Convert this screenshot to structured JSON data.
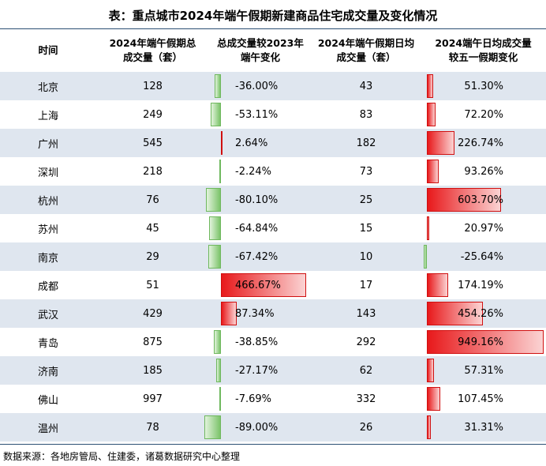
{
  "title": "表：重点城市2024年端午假期新建商品住宅成交量及变化情况",
  "source": "数据来源：各地房管局、住建委，诸葛数据研究中心整理",
  "chart_data": {
    "type": "table",
    "columns": [
      "时间",
      "2024年端午假期总\n成交量（套）",
      "总成交量较2023年\n端午变化",
      "2024年端午假期日均\n成交量（套）",
      "2024端午日均成交量\n较五一假期变化"
    ],
    "rows": [
      {
        "city": "北京",
        "total": "128",
        "change_vs_2023": -36.0,
        "daily": "43",
        "change_vs_mayday": 51.3
      },
      {
        "city": "上海",
        "total": "249",
        "change_vs_2023": -53.11,
        "daily": "83",
        "change_vs_mayday": 72.2
      },
      {
        "city": "广州",
        "total": "545",
        "change_vs_2023": 2.64,
        "daily": "182",
        "change_vs_mayday": 226.74
      },
      {
        "city": "深圳",
        "total": "218",
        "change_vs_2023": -2.24,
        "daily": "73",
        "change_vs_mayday": 93.26
      },
      {
        "city": "杭州",
        "total": "76",
        "change_vs_2023": -80.1,
        "daily": "25",
        "change_vs_mayday": 603.7
      },
      {
        "city": "苏州",
        "total": "45",
        "change_vs_2023": -64.84,
        "daily": "15",
        "change_vs_mayday": 20.97
      },
      {
        "city": "南京",
        "total": "29",
        "change_vs_2023": -67.42,
        "daily": "10",
        "change_vs_mayday": -25.64
      },
      {
        "city": "成都",
        "total": "51",
        "change_vs_2023": 466.67,
        "daily": "17",
        "change_vs_mayday": 174.19
      },
      {
        "city": "武汉",
        "total": "429",
        "change_vs_2023": 87.34,
        "daily": "143",
        "change_vs_mayday": 454.26
      },
      {
        "city": "青岛",
        "total": "875",
        "change_vs_2023": -38.85,
        "daily": "292",
        "change_vs_mayday": 949.16
      },
      {
        "city": "济南",
        "total": "185",
        "change_vs_2023": -27.17,
        "daily": "62",
        "change_vs_mayday": 57.31
      },
      {
        "city": "佛山",
        "total": "997",
        "change_vs_2023": -7.69,
        "daily": "332",
        "change_vs_mayday": 107.45
      },
      {
        "city": "温州",
        "total": "78",
        "change_vs_2023": -89.0,
        "daily": "26",
        "change_vs_mayday": 31.31
      }
    ],
    "colors": {
      "positive": "#e8191b",
      "negative": "#7cc46b",
      "row_band": "#dfe6ef",
      "rule": "#2b4f73"
    }
  }
}
